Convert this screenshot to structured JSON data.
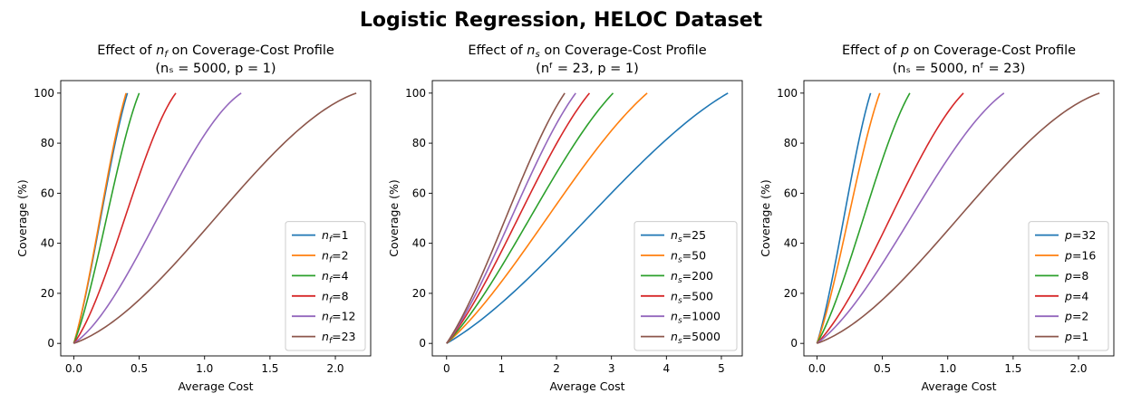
{
  "figure_title": "Logistic Regression, HELOC Dataset",
  "colors": [
    "#1f77b4",
    "#ff7f0e",
    "#2ca02c",
    "#d62728",
    "#9467bd",
    "#8c564b"
  ],
  "chart_data": [
    {
      "type": "line",
      "title_line1_pre": "Effect of ",
      "title_line1_sym": "n",
      "title_line1_sub": "f",
      "title_line1_post": " on Coverage-Cost Profile",
      "title_line2": "(nₛ = 5000, p = 1)",
      "xlabel": "Average Cost",
      "ylabel": "Coverage (%)",
      "xlim": [
        -0.1,
        2.27
      ],
      "ylim": [
        -5,
        105
      ],
      "xticks": [
        0.0,
        0.5,
        1.0,
        1.5,
        2.0
      ],
      "xtick_labels": [
        "0.0",
        "0.5",
        "1.0",
        "1.5",
        "2.0"
      ],
      "yticks": [
        0,
        20,
        40,
        60,
        80,
        100
      ],
      "ytick_labels": [
        "0",
        "20",
        "40",
        "60",
        "80",
        "100"
      ],
      "legend_loc": "lower-right",
      "legend_sym": "n",
      "legend_sub": "f",
      "series": [
        {
          "name": "1",
          "x": [
            0,
            0.41
          ],
          "y": [
            0,
            100
          ],
          "curve": 0.3
        },
        {
          "name": "2",
          "x": [
            0,
            0.4
          ],
          "y": [
            0,
            100
          ],
          "curve": 0.3
        },
        {
          "name": "4",
          "x": [
            0,
            0.5
          ],
          "y": [
            0,
            100
          ],
          "curve": 0.35
        },
        {
          "name": "8",
          "x": [
            0,
            0.78
          ],
          "y": [
            0,
            100
          ],
          "curve": 0.45
        },
        {
          "name": "12",
          "x": [
            0,
            1.28
          ],
          "y": [
            0,
            100
          ],
          "curve": 0.55
        },
        {
          "name": "23",
          "x": [
            0,
            2.16
          ],
          "y": [
            0,
            100
          ],
          "curve": 0.6
        }
      ]
    },
    {
      "type": "line",
      "title_line1_pre": "Effect of ",
      "title_line1_sym": "n",
      "title_line1_sub": "s",
      "title_line1_post": " on Coverage-Cost Profile",
      "title_line2": "(nᶠ = 23, p = 1)",
      "xlabel": "Average Cost",
      "ylabel": "Coverage (%)",
      "xlim": [
        -0.26,
        5.38
      ],
      "ylim": [
        -5,
        105
      ],
      "xticks": [
        0,
        1,
        2,
        3,
        4,
        5
      ],
      "xtick_labels": [
        "0",
        "1",
        "2",
        "3",
        "4",
        "5"
      ],
      "yticks": [
        0,
        20,
        40,
        60,
        80,
        100
      ],
      "ytick_labels": [
        "0",
        "20",
        "40",
        "60",
        "80",
        "100"
      ],
      "legend_loc": "lower-right",
      "legend_sym": "n",
      "legend_sub": "s",
      "series": [
        {
          "name": "25",
          "x": [
            0,
            5.12
          ],
          "y": [
            0,
            100
          ],
          "curve": 0.35
        },
        {
          "name": "50",
          "x": [
            0,
            3.65
          ],
          "y": [
            0,
            100
          ],
          "curve": 0.3
        },
        {
          "name": "200",
          "x": [
            0,
            3.03
          ],
          "y": [
            0,
            100
          ],
          "curve": 0.3
        },
        {
          "name": "500",
          "x": [
            0,
            2.6
          ],
          "y": [
            0,
            100
          ],
          "curve": 0.3
        },
        {
          "name": "1000",
          "x": [
            0,
            2.35
          ],
          "y": [
            0,
            100
          ],
          "curve": 0.3
        },
        {
          "name": "5000",
          "x": [
            0,
            2.15
          ],
          "y": [
            0,
            100
          ],
          "curve": 0.3
        }
      ]
    },
    {
      "type": "line",
      "title_line1_pre": "Effect of ",
      "title_line1_sym": "p",
      "title_line1_sub": "",
      "title_line1_post": " on Coverage-Cost Profile",
      "title_line2": "(nₛ = 5000, nᶠ = 23)",
      "xlabel": "Average Cost",
      "ylabel": "Coverage (%)",
      "xlim": [
        -0.1,
        2.27
      ],
      "ylim": [
        -5,
        105
      ],
      "xticks": [
        0.0,
        0.5,
        1.0,
        1.5,
        2.0
      ],
      "xtick_labels": [
        "0.0",
        "0.5",
        "1.0",
        "1.5",
        "2.0"
      ],
      "yticks": [
        0,
        20,
        40,
        60,
        80,
        100
      ],
      "ytick_labels": [
        "0",
        "20",
        "40",
        "60",
        "80",
        "100"
      ],
      "legend_loc": "lower-right",
      "legend_sym": "p",
      "legend_sub": "",
      "series": [
        {
          "name": "32",
          "x": [
            0,
            0.41
          ],
          "y": [
            0,
            100
          ],
          "curve": 0.3
        },
        {
          "name": "16",
          "x": [
            0,
            0.48
          ],
          "y": [
            0,
            100
          ],
          "curve": 0.3
        },
        {
          "name": "8",
          "x": [
            0,
            0.71
          ],
          "y": [
            0,
            100
          ],
          "curve": 0.35
        },
        {
          "name": "4",
          "x": [
            0,
            1.12
          ],
          "y": [
            0,
            100
          ],
          "curve": 0.4
        },
        {
          "name": "2",
          "x": [
            0,
            1.43
          ],
          "y": [
            0,
            100
          ],
          "curve": 0.45
        },
        {
          "name": "1",
          "x": [
            0,
            2.16
          ],
          "y": [
            0,
            100
          ],
          "curve": 0.6
        }
      ]
    }
  ]
}
